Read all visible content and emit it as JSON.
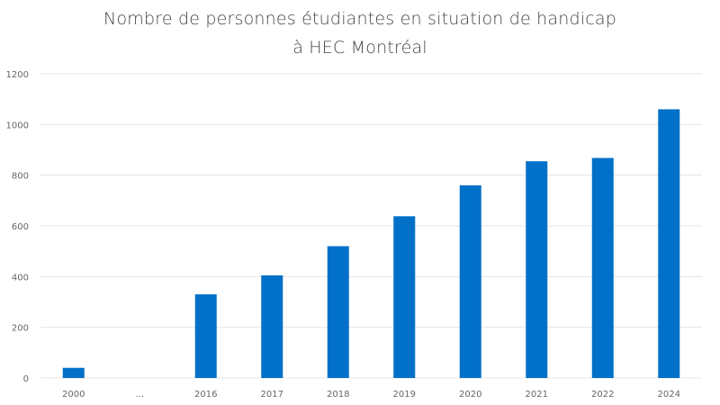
{
  "chart_data": {
    "type": "bar",
    "title_lines": [
      "Nombre de personnes étudiantes en situation de handicap",
      "à HEC Montréal"
    ],
    "categories": [
      "2000",
      "...",
      "2016",
      "2017",
      "2018",
      "2019",
      "2020",
      "2021",
      "2022",
      "2024"
    ],
    "values": [
      40,
      null,
      330,
      405,
      520,
      638,
      760,
      855,
      868,
      1060
    ],
    "ylim": [
      0,
      1200
    ],
    "yticks": [
      0,
      200,
      400,
      600,
      800,
      1000,
      1200
    ],
    "grid": true,
    "legend": "none",
    "xlabel": "",
    "ylabel": "",
    "bar_color": "#0070C8",
    "grid_color": "#E4E4E4"
  }
}
